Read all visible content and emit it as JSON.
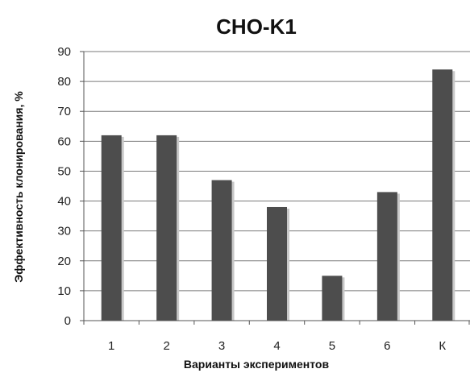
{
  "chart_data": {
    "type": "bar",
    "title": "CHO-K1",
    "xlabel": "Варианты экспериментов",
    "ylabel": "Эффективность клонирования, %",
    "categories": [
      "1",
      "2",
      "3",
      "4",
      "5",
      "6",
      "К"
    ],
    "values": [
      62,
      62,
      47,
      38,
      15,
      43,
      84
    ],
    "ylim": [
      0,
      90
    ],
    "yticks": [
      "0",
      "10",
      "20",
      "30",
      "40",
      "50",
      "60",
      "70",
      "80",
      "90"
    ],
    "grid": true,
    "legend": "none",
    "colors": {
      "bar": "#4d4d4d",
      "bar_shadow": "#c8c8c8",
      "grid": "#7a7a7a",
      "axis": "#555555"
    }
  }
}
